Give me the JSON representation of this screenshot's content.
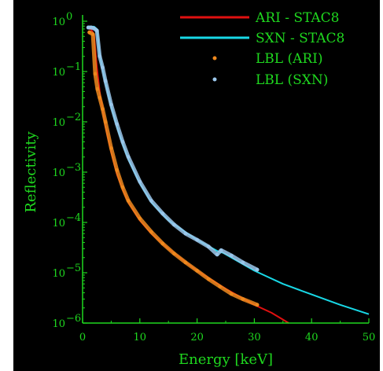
{
  "chart_data": {
    "type": "line",
    "title": "",
    "xlabel": "Energy [keV]",
    "ylabel": "Reflectivity",
    "xlim": [
      0,
      50
    ],
    "ylim": [
      1e-06,
      1
    ],
    "yscale": "log",
    "grid": false,
    "legend_position": "top-right",
    "x_ticks": [
      0,
      10,
      20,
      30,
      40,
      50
    ],
    "y_tick_exponents": [
      -6,
      -5,
      -4,
      -3,
      -2,
      -1,
      0
    ],
    "y_tick_base": "10",
    "colors": {
      "axis": "#1fd81f",
      "ari_line": "#e01010",
      "sxn_line": "#18d8e6",
      "lbl_ari": "#f08a1e",
      "lbl_sxn": "#9cc8ec"
    },
    "series": [
      {
        "name": "ARI - STAC8",
        "style": "line",
        "x": [
          1.0,
          1.5,
          2.0,
          2.5,
          3.0,
          4.0,
          5.0,
          6.0,
          7.0,
          8.0,
          10.0,
          12.0,
          15.0,
          20.0,
          25.0,
          30.0,
          33.0,
          36.0
        ],
        "y": [
          0.72,
          0.68,
          0.55,
          0.12,
          0.04,
          0.008,
          0.0025,
          0.0009,
          0.00045,
          0.00025,
          0.00011,
          6e-05,
          3e-05,
          1.1e-05,
          4.8e-06,
          2.3e-06,
          1.6e-06,
          1e-06
        ]
      },
      {
        "name": "SXN - STAC8",
        "style": "line",
        "x": [
          1.0,
          2.0,
          2.5,
          3.0,
          3.5,
          4.0,
          5.0,
          6.0,
          7.0,
          8.0,
          10.0,
          12.0,
          15.0,
          20.0,
          23.8,
          24.5,
          30.0,
          35.0,
          40.0,
          45.0,
          50.0
        ],
        "y": [
          0.78,
          0.78,
          0.7,
          0.22,
          0.11,
          0.06,
          0.02,
          0.008,
          0.0036,
          0.0018,
          0.0006,
          0.00025,
          0.00011,
          4.5e-05,
          2.6e-05,
          2.5e-05,
          1.1e-05,
          6e-06,
          3.7e-06,
          2.3e-06,
          1.5e-06
        ]
      },
      {
        "name": "LBL (ARI)",
        "style": "markers",
        "x": [
          1.2,
          1.8,
          2.2,
          2.6,
          3.0,
          3.5,
          4.0,
          5.0,
          6.0,
          7.0,
          8.0,
          10.0,
          12.0,
          14.0,
          16.0,
          18.0,
          20.0,
          22.0,
          24.0,
          26.0,
          28.0,
          30.5
        ],
        "y": [
          0.6,
          0.55,
          0.09,
          0.045,
          0.03,
          0.018,
          0.01,
          0.003,
          0.0011,
          0.0005,
          0.00027,
          0.00012,
          6.5e-05,
          3.8e-05,
          2.4e-05,
          1.6e-05,
          1.1e-05,
          7.5e-06,
          5.3e-06,
          3.8e-06,
          3e-06,
          2.3e-06
        ]
      },
      {
        "name": "LBL (SXN)",
        "style": "markers",
        "x": [
          1.0,
          1.5,
          2.0,
          2.5,
          3.0,
          3.5,
          4.0,
          5.0,
          6.0,
          7.0,
          8.0,
          10.0,
          12.0,
          14.0,
          16.0,
          18.0,
          20.0,
          22.0,
          23.5,
          24.2,
          26.0,
          28.0,
          30.5
        ],
        "y": [
          0.75,
          0.75,
          0.72,
          0.65,
          0.2,
          0.12,
          0.065,
          0.022,
          0.009,
          0.004,
          0.002,
          0.00065,
          0.00027,
          0.00015,
          9e-05,
          6e-05,
          4.5e-05,
          3.3e-05,
          2.3e-05,
          2.8e-05,
          2.2e-05,
          1.6e-05,
          1.15e-05
        ]
      }
    ]
  }
}
